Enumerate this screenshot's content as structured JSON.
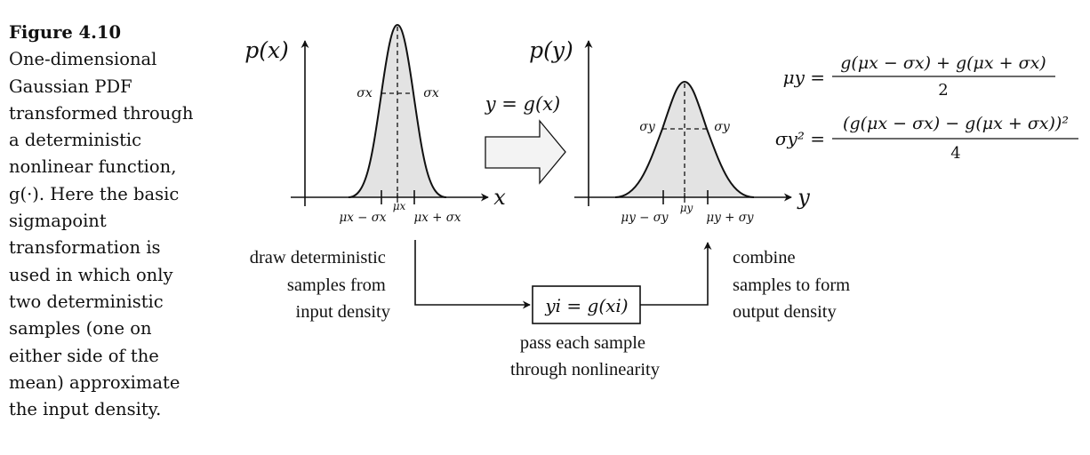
{
  "caption": {
    "label": "Figure 4.10",
    "text": "One-dimensional Gaussian PDF transformed through a deterministic nonlinear function, g(·). Here the basic sigmapoint transformation is used in which only two deterministic samples (one on either side of the mean) approximate the input density."
  },
  "left_plot": {
    "ylabel": "p(x)",
    "xlabel": "x",
    "sigma_left": "σx",
    "sigma_right": "σx",
    "mean_label": "μx",
    "tick_minus": "μx − σx",
    "tick_plus": "μx + σx"
  },
  "right_plot": {
    "ylabel": "p(y)",
    "xlabel": "y",
    "sigma_left": "σy",
    "sigma_right": "σy",
    "mean_label": "μy",
    "tick_minus": "μy − σy",
    "tick_plus": "μy + σy"
  },
  "transform": {
    "label": "y = g(x)"
  },
  "flow": {
    "left_lines": [
      "draw deterministic",
      "samples from",
      "input density"
    ],
    "box_label": "yi = g(xi)",
    "bottom_lines": [
      "pass each sample",
      "through nonlinearity"
    ],
    "right_lines": [
      "combine",
      "samples to form",
      "output density"
    ]
  },
  "equations": {
    "mean_lhs": "μy =",
    "mean_num": "g(μx − σx) + g(μx + σx)",
    "mean_den": "2",
    "var_lhs": "σy² =",
    "var_num": "(g(μx − σx) − g(μx + σx))²",
    "var_den": "4"
  },
  "colors": {
    "fill": "#e3e3e3",
    "arrow_fill": "#f3f3f3",
    "stroke": "#111111"
  }
}
